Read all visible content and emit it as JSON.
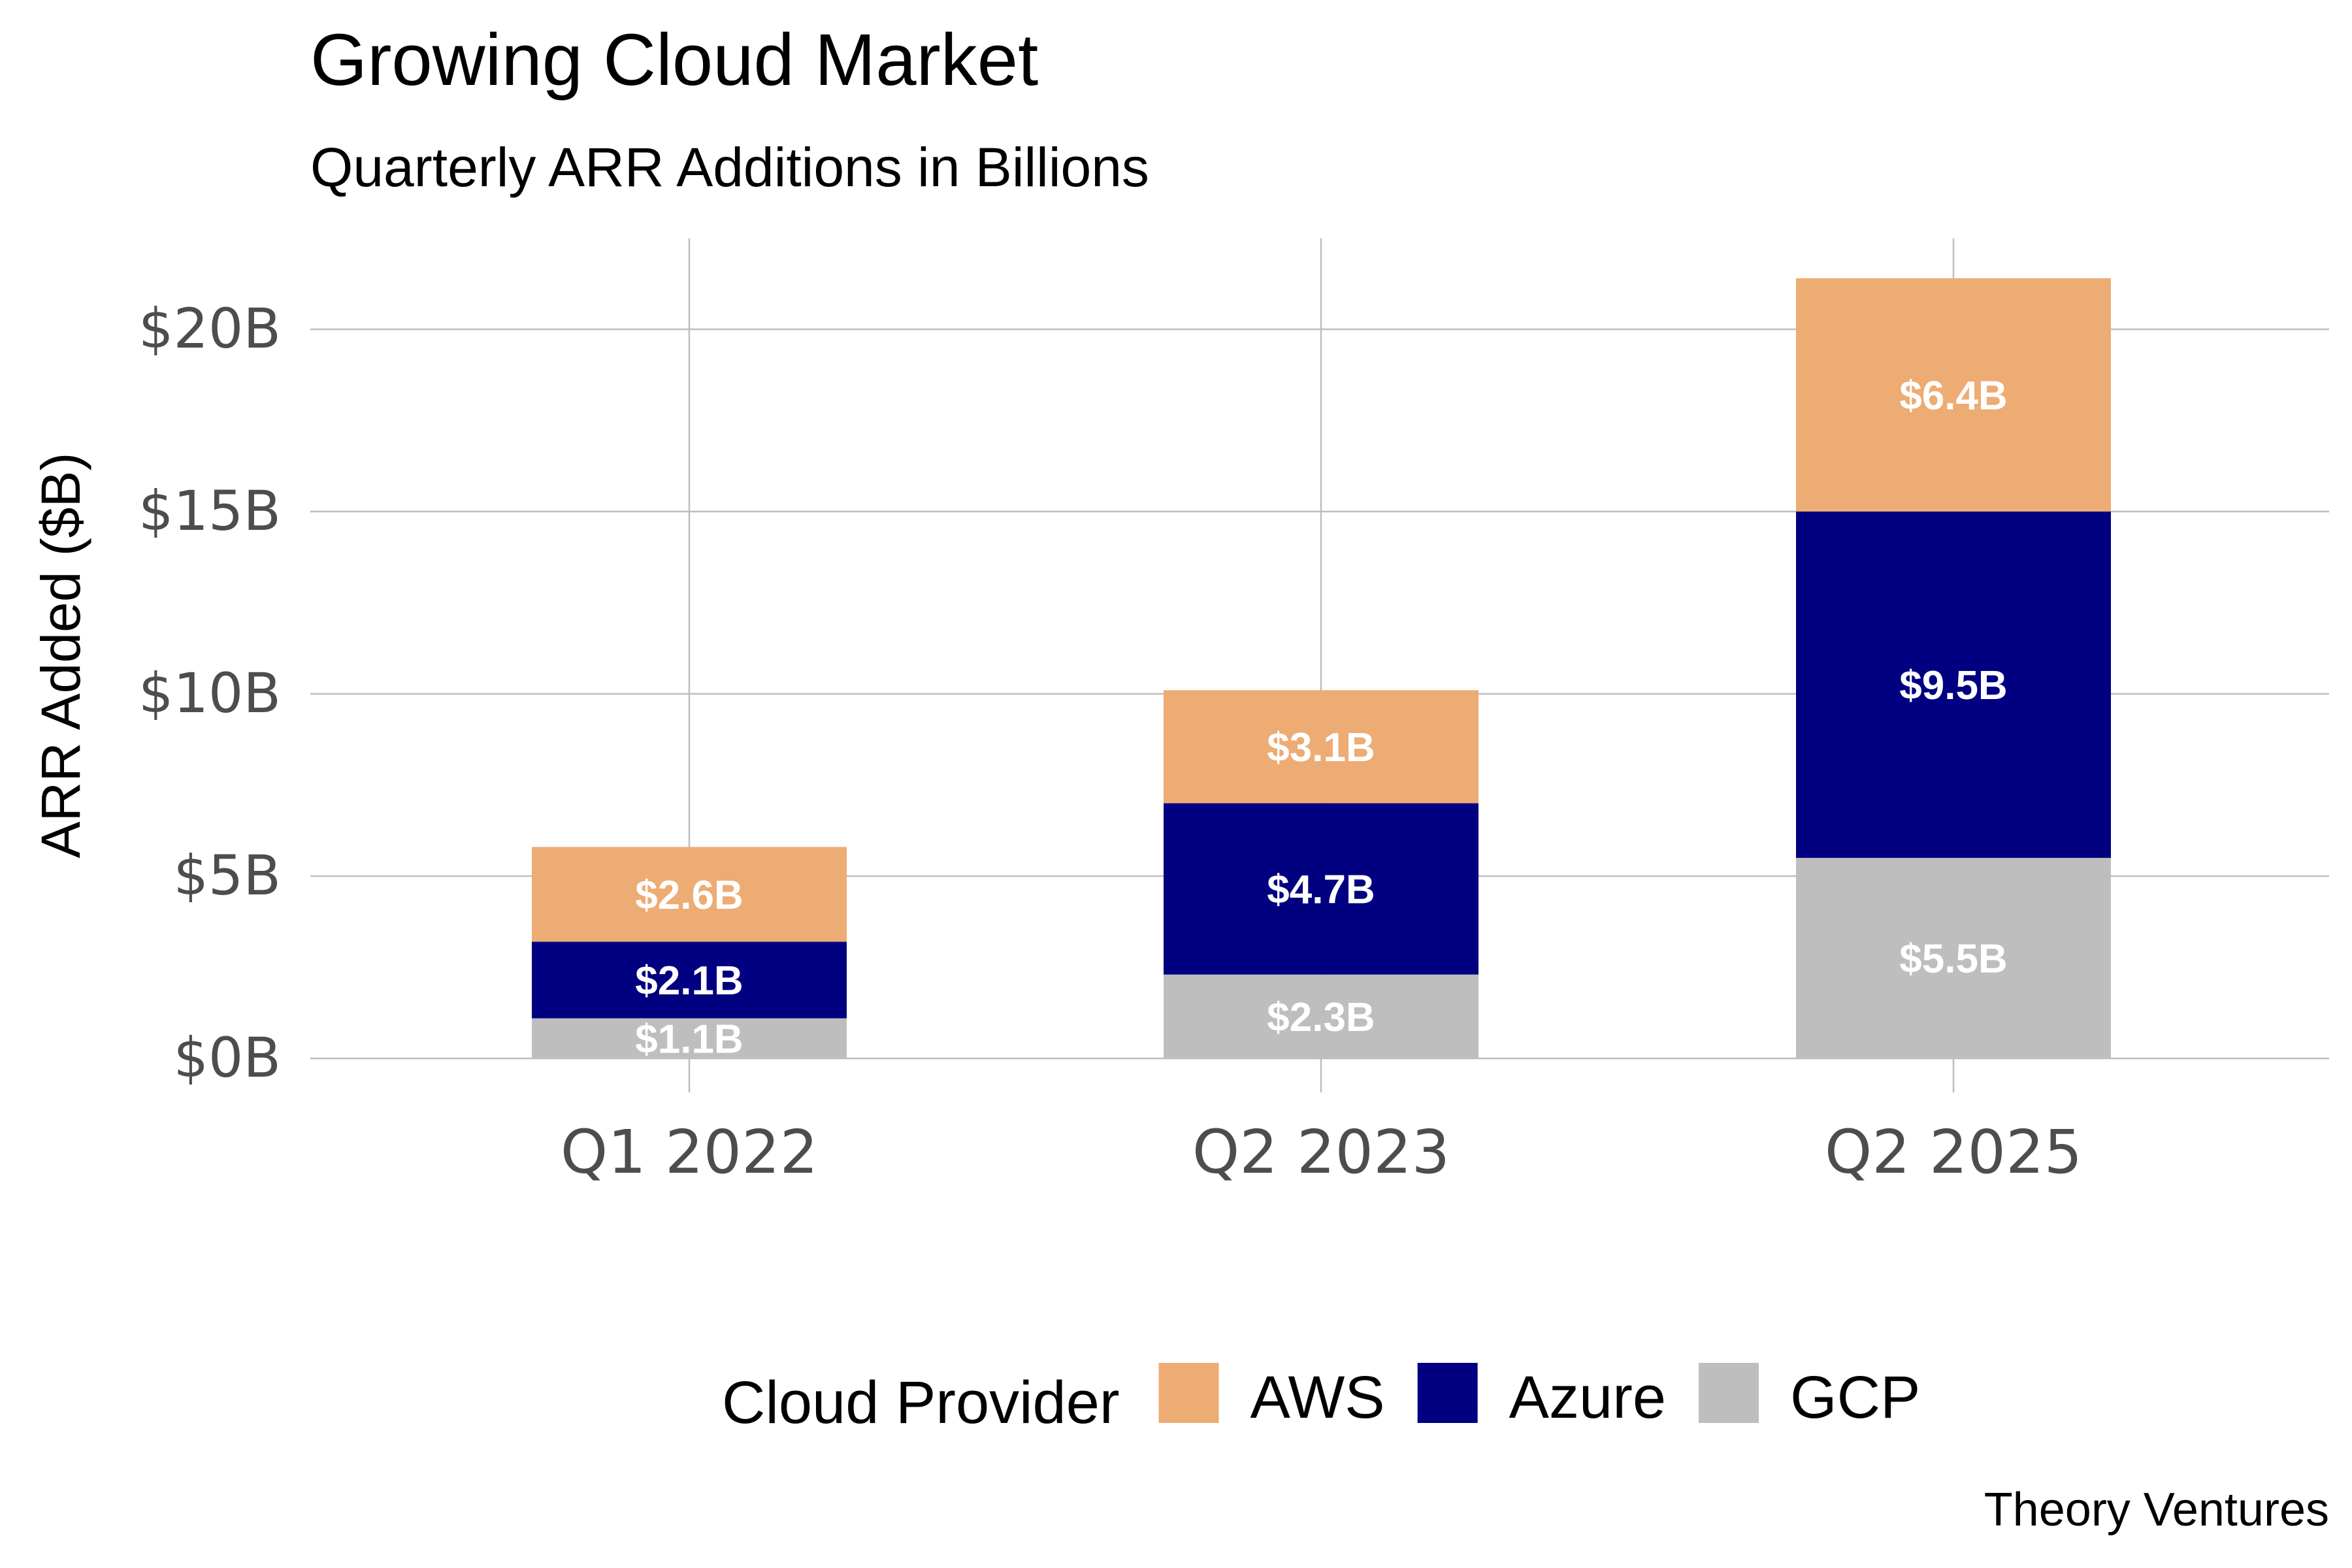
{
  "chart_data": {
    "type": "bar",
    "stacked": true,
    "title": "Growing Cloud Market",
    "subtitle": "Quarterly ARR Additions in Billions",
    "xlabel": "",
    "ylabel": "ARR Added ($B)",
    "ylim": [
      0,
      22.5
    ],
    "yticks": [
      0,
      5,
      10,
      15,
      20
    ],
    "ytick_labels": [
      "$0B",
      "$5B",
      "$10B",
      "$15B",
      "$20B"
    ],
    "categories": [
      "Q1 2022",
      "Q2 2023",
      "Q2 2025"
    ],
    "series": [
      {
        "name": "GCP",
        "color": "#bebebe",
        "values": [
          1.1,
          2.3,
          5.5
        ],
        "labels": [
          "$1.1B",
          "$2.3B",
          "$5.5B"
        ]
      },
      {
        "name": "Azure",
        "color": "#000080",
        "values": [
          2.1,
          4.7,
          9.5
        ],
        "labels": [
          "$2.1B",
          "$4.7B",
          "$9.5B"
        ]
      },
      {
        "name": "AWS",
        "color": "#edac73",
        "values": [
          2.6,
          3.1,
          6.4
        ],
        "labels": [
          "$2.6B",
          "$3.1B",
          "$6.4B"
        ]
      }
    ],
    "legend": {
      "title": "Cloud Provider",
      "position": "bottom",
      "items": [
        {
          "name": "AWS",
          "color": "#edac73"
        },
        {
          "name": "Azure",
          "color": "#000080"
        },
        {
          "name": "GCP",
          "color": "#bebebe"
        }
      ]
    },
    "grid": true,
    "caption": "Theory Ventures"
  }
}
